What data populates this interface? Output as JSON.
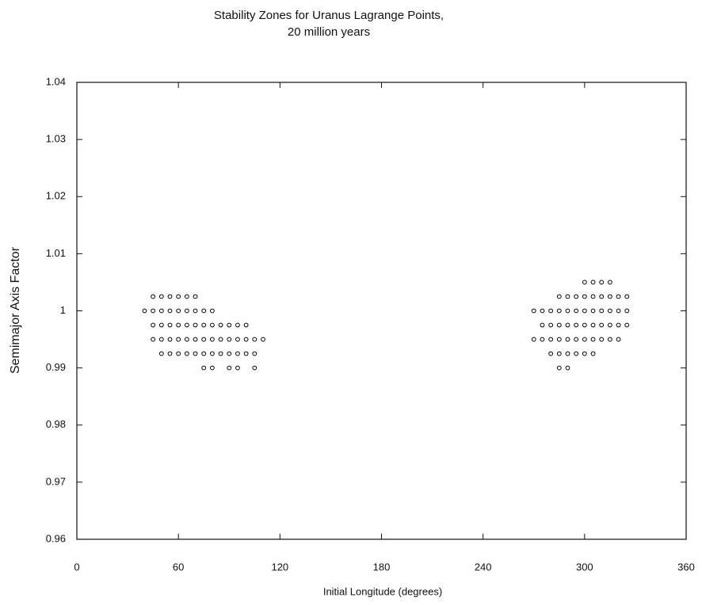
{
  "chart_data": {
    "type": "scatter",
    "title": [
      "Stability Zones for Uranus Lagrange Points,",
      "20 million years"
    ],
    "xlabel": "Initial Longitude (degrees)",
    "ylabel": "Semimajor Axis Factor",
    "color": "#000000",
    "xlim": [
      0,
      360
    ],
    "xticks": [
      0,
      60,
      120,
      180,
      240,
      300,
      360
    ],
    "ylim": [
      0.96,
      1.04
    ],
    "yticks": [
      0.96,
      0.97,
      0.98,
      0.99,
      1,
      1.01,
      1.02,
      1.03,
      1.04
    ],
    "x": [
      45,
      50,
      55,
      60,
      65,
      70,
      40,
      45,
      50,
      55,
      60,
      65,
      70,
      75,
      80,
      45,
      50,
      55,
      60,
      65,
      70,
      75,
      80,
      85,
      90,
      95,
      100,
      45,
      50,
      55,
      60,
      65,
      70,
      75,
      80,
      85,
      90,
      95,
      100,
      105,
      110,
      50,
      55,
      60,
      65,
      70,
      75,
      80,
      85,
      90,
      95,
      100,
      105,
      75,
      80,
      90,
      95,
      105,
      300,
      305,
      310,
      315,
      285,
      290,
      295,
      300,
      305,
      310,
      315,
      320,
      325,
      270,
      275,
      280,
      285,
      290,
      295,
      300,
      305,
      310,
      315,
      320,
      325,
      275,
      280,
      285,
      290,
      295,
      300,
      305,
      310,
      315,
      320,
      325,
      270,
      275,
      280,
      285,
      290,
      295,
      300,
      305,
      310,
      315,
      320,
      280,
      285,
      290,
      295,
      300,
      305,
      285,
      290
    ],
    "values": [
      1.0025,
      1.0025,
      1.0025,
      1.0025,
      1.0025,
      1.0025,
      1,
      1,
      1,
      1,
      1,
      1,
      1,
      1,
      1,
      0.9975,
      0.9975,
      0.9975,
      0.9975,
      0.9975,
      0.9975,
      0.9975,
      0.9975,
      0.9975,
      0.9975,
      0.9975,
      0.9975,
      0.995,
      0.995,
      0.995,
      0.995,
      0.995,
      0.995,
      0.995,
      0.995,
      0.995,
      0.995,
      0.995,
      0.995,
      0.995,
      0.995,
      0.9925,
      0.9925,
      0.9925,
      0.9925,
      0.9925,
      0.9925,
      0.9925,
      0.9925,
      0.9925,
      0.9925,
      0.9925,
      0.9925,
      0.99,
      0.99,
      0.99,
      0.99,
      0.99,
      1.005,
      1.005,
      1.005,
      1.005,
      1.0025,
      1.0025,
      1.0025,
      1.0025,
      1.0025,
      1.0025,
      1.0025,
      1.0025,
      1.0025,
      1,
      1,
      1,
      1,
      1,
      1,
      1,
      1,
      1,
      1,
      1,
      1,
      0.9975,
      0.9975,
      0.9975,
      0.9975,
      0.9975,
      0.9975,
      0.9975,
      0.9975,
      0.9975,
      0.9975,
      0.9975,
      0.995,
      0.995,
      0.995,
      0.995,
      0.995,
      0.995,
      0.995,
      0.995,
      0.995,
      0.995,
      0.995,
      0.9925,
      0.9925,
      0.9925,
      0.9925,
      0.9925,
      0.9925,
      0.99,
      0.99
    ]
  }
}
